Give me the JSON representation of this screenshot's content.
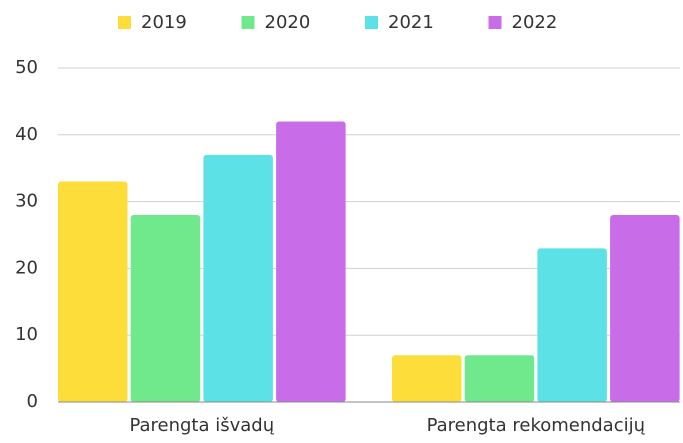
{
  "chart_data": {
    "type": "bar",
    "categories": [
      "Parengta išvadų",
      "Parengta rekomendacijų"
    ],
    "series": [
      {
        "name": "2019",
        "color": "#fddd3a",
        "values": [
          33,
          7
        ]
      },
      {
        "name": "2020",
        "color": "#6fe98c",
        "values": [
          28,
          7
        ]
      },
      {
        "name": "2021",
        "color": "#5ce1e6",
        "values": [
          37,
          23
        ]
      },
      {
        "name": "2022",
        "color": "#c96ce8",
        "values": [
          42,
          28
        ]
      }
    ],
    "ylim": [
      0,
      50
    ],
    "yticks": [
      0,
      10,
      20,
      30,
      40,
      50
    ],
    "grid": true,
    "legend": "top"
  }
}
